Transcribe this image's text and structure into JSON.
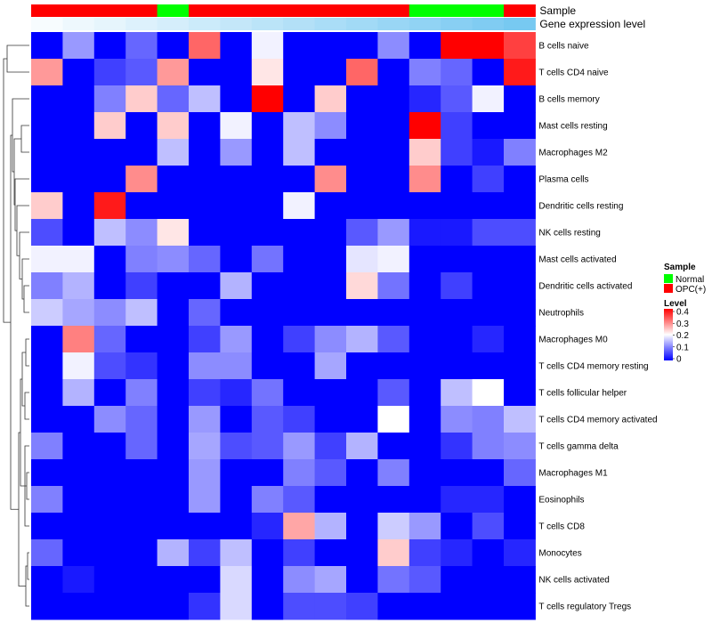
{
  "chart_data": {
    "type": "heatmap",
    "annotation_rows": [
      {
        "label": "Sample",
        "values": [
          "OPC(+)",
          "OPC(+)",
          "OPC(+)",
          "OPC(+)",
          "Normal",
          "OPC(+)",
          "OPC(+)",
          "OPC(+)",
          "OPC(+)",
          "OPC(+)",
          "OPC(+)",
          "OPC(+)",
          "Normal",
          "Normal",
          "Normal",
          "OPC(+)"
        ]
      },
      {
        "label": "Gene expression level",
        "values": [
          0.05,
          0.1,
          0.15,
          0.2,
          0.25,
          0.3,
          0.35,
          0.4,
          0.45,
          0.5,
          0.55,
          0.6,
          0.65,
          0.7,
          0.75,
          0.8
        ]
      }
    ],
    "rows": [
      "B cells naive",
      "T cells CD4 naive",
      "B cells memory",
      "Mast cells resting",
      "Macrophages M2",
      "Plasma cells",
      "Dendritic cells resting",
      "NK cells resting",
      "Mast cells activated",
      "Dendritic cells activated",
      "Neutrophils",
      "Macrophages M0",
      "T cells CD4 memory resting",
      "T cells follicular helper",
      "T cells CD4 memory activated",
      "T cells gamma delta",
      "Macrophages M1",
      "Eosinophils",
      "T cells CD8",
      "Monocytes",
      "NK cells activated",
      "T cells regulatory  Tregs"
    ],
    "values": [
      [
        0,
        0.12,
        0,
        0.08,
        0,
        0.32,
        0,
        0.19,
        0,
        0,
        0,
        0.11,
        0,
        0.4,
        0.4,
        0.35
      ],
      [
        0.28,
        0,
        0.05,
        0.07,
        0.28,
        0,
        0,
        0.22,
        0,
        0,
        0.32,
        0,
        0.1,
        0.08,
        0,
        0.38
      ],
      [
        0,
        0,
        0.1,
        0.24,
        0.08,
        0.15,
        0,
        0.4,
        0,
        0.24,
        0,
        0,
        0.03,
        0.07,
        0.19,
        0
      ],
      [
        0,
        0,
        0.24,
        0,
        0.24,
        0,
        0.19,
        0,
        0.15,
        0.11,
        0,
        0,
        0.4,
        0.05,
        0,
        0
      ],
      [
        0,
        0,
        0,
        0,
        0.15,
        0,
        0.12,
        0,
        0.15,
        0,
        0,
        0,
        0.24,
        0.05,
        0.02,
        0.1
      ],
      [
        0,
        0,
        0,
        0.29,
        0,
        0,
        0,
        0,
        0,
        0.29,
        0,
        0,
        0.29,
        0,
        0.05,
        0
      ],
      [
        0.24,
        0,
        0.38,
        0,
        0,
        0,
        0,
        0,
        0.19,
        0,
        0,
        0,
        0,
        0,
        0,
        0
      ],
      [
        0.06,
        0,
        0.15,
        0.11,
        0.22,
        0,
        0,
        0,
        0,
        0,
        0.07,
        0.12,
        0.02,
        0.02,
        0.06,
        0.06
      ],
      [
        0.19,
        0.19,
        0,
        0.1,
        0.11,
        0.08,
        0,
        0.09,
        0,
        0,
        0.18,
        0.19,
        0,
        0,
        0,
        0
      ],
      [
        0.1,
        0.14,
        0,
        0.05,
        0,
        0,
        0.14,
        0,
        0,
        0,
        0.23,
        0.09,
        0,
        0.05,
        0,
        0
      ],
      [
        0.16,
        0.13,
        0.11,
        0.15,
        0,
        0.08,
        0,
        0,
        0,
        0,
        0,
        0,
        0,
        0,
        0,
        0
      ],
      [
        0,
        0.3,
        0.08,
        0,
        0,
        0.05,
        0.12,
        0,
        0.05,
        0.11,
        0.14,
        0.07,
        0,
        0,
        0.03,
        0
      ],
      [
        0,
        0.19,
        0.06,
        0.04,
        0,
        0.11,
        0.11,
        0,
        0,
        0.13,
        0,
        0,
        0,
        0,
        0,
        0
      ],
      [
        0,
        0.14,
        0,
        0.1,
        0,
        0.05,
        0.03,
        0.09,
        0,
        0,
        0,
        0.07,
        0,
        0.15,
        0.2,
        0
      ],
      [
        0,
        0,
        0.11,
        0.08,
        0,
        0.12,
        0,
        0.07,
        0.05,
        0,
        0,
        0.2,
        0,
        0.11,
        0.1,
        0.15
      ],
      [
        0.1,
        0,
        0,
        0.08,
        0,
        0.13,
        0.06,
        0.07,
        0.12,
        0.05,
        0.14,
        0,
        0,
        0.04,
        0.1,
        0.11
      ],
      [
        0,
        0,
        0,
        0,
        0,
        0.12,
        0,
        0,
        0.1,
        0.07,
        0,
        0.1,
        0,
        0,
        0,
        0.08
      ],
      [
        0.1,
        0,
        0,
        0,
        0,
        0.12,
        0,
        0.1,
        0.07,
        0,
        0,
        0,
        0,
        0.03,
        0.03,
        0
      ],
      [
        0,
        0,
        0,
        0,
        0,
        0,
        0,
        0.03,
        0.27,
        0.14,
        0,
        0.16,
        0.12,
        0,
        0.06,
        0
      ],
      [
        0.08,
        0,
        0,
        0,
        0.14,
        0.05,
        0.15,
        0,
        0.05,
        0,
        0,
        0.24,
        0.05,
        0.03,
        0,
        0.03
      ],
      [
        0,
        0.02,
        0,
        0,
        0,
        0,
        0.17,
        0,
        0.11,
        0.13,
        0,
        0.09,
        0.07,
        0,
        0,
        0
      ],
      [
        0,
        0,
        0,
        0,
        0,
        0.04,
        0.17,
        0,
        0.06,
        0.06,
        0.05,
        0,
        0,
        0,
        0,
        0
      ]
    ],
    "legend": {
      "sample_title": "Sample",
      "sample_entries": [
        {
          "label": "Normal",
          "color": "#00ff00"
        },
        {
          "label": "OPC(+)",
          "color": "#ff0000"
        }
      ],
      "level_title": "Level",
      "level_ticks": [
        "0.4",
        "0.3",
        "0.2",
        "0.1",
        "0"
      ],
      "placement": "right"
    },
    "color_scale": {
      "low": "#0000ff",
      "mid": "#ffffff",
      "high": "#ff0000",
      "min": 0,
      "mid_value": 0.2,
      "max": 0.4
    },
    "gene_expression_colors": {
      "low": "#ffffff",
      "high": "#55bbee"
    },
    "dendrogram": "rows-left"
  }
}
